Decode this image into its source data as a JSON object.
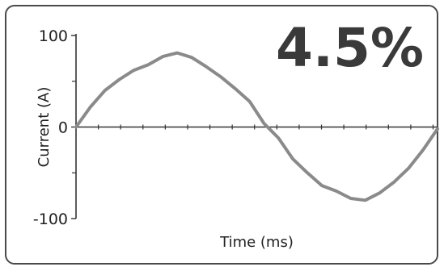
{
  "headline": "4.5%",
  "chart_data": {
    "type": "line",
    "xlabel": "Time (ms)",
    "ylabel": "Current (A)",
    "ylim": [
      -100,
      100
    ],
    "y_ticks": [
      "100",
      "0",
      "-100"
    ],
    "y_tick_values": [
      100,
      0,
      -100
    ],
    "x_tick_count": 16,
    "grid": false,
    "series": [
      {
        "color": "#8a8a8a",
        "x": [
          0,
          0.04,
          0.08,
          0.12,
          0.16,
          0.2,
          0.24,
          0.28,
          0.32,
          0.36,
          0.4,
          0.44,
          0.48,
          0.52,
          0.56,
          0.6,
          0.64,
          0.68,
          0.72,
          0.76,
          0.8,
          0.84,
          0.88,
          0.92,
          0.96,
          1.0
        ],
        "y": [
          0,
          22,
          40,
          52,
          62,
          68,
          77,
          81,
          76,
          66,
          55,
          42,
          28,
          4,
          -12,
          -35,
          -50,
          -64,
          -70,
          -78,
          -80,
          -72,
          -60,
          -45,
          -25,
          -2
        ]
      }
    ]
  }
}
